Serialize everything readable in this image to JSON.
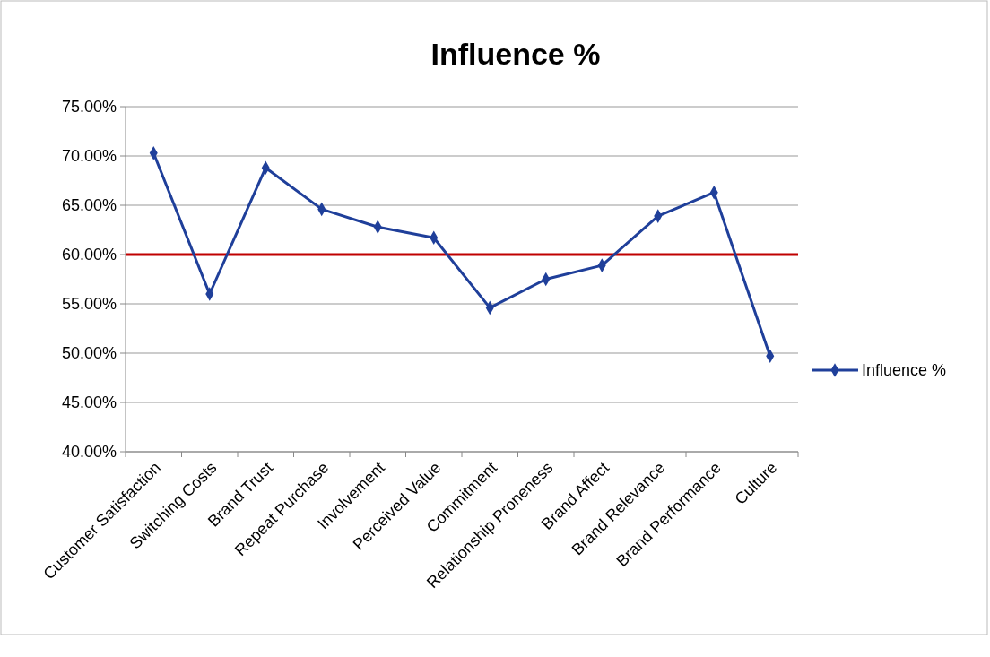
{
  "chart_data": {
    "type": "line",
    "title": "Influence %",
    "categories": [
      "Customer Satisfaction",
      "Switching Costs",
      "Brand Trust",
      "Repeat Purchase",
      "Involvement",
      "Perceived Value",
      "Commitment",
      "Relationship Proneness",
      "Brand Affect",
      "Brand Relevance",
      "Brand Performance",
      "Culture"
    ],
    "series": [
      {
        "name": "Influence %",
        "color": "#1f3f9a",
        "values": [
          70.3,
          56.0,
          68.8,
          64.6,
          62.8,
          61.7,
          54.6,
          57.5,
          58.9,
          63.9,
          66.3,
          49.7
        ]
      }
    ],
    "ylim": [
      40,
      75
    ],
    "yticks": [
      {
        "value": 40,
        "label": "40.00%"
      },
      {
        "value": 45,
        "label": "45.00%"
      },
      {
        "value": 50,
        "label": "50.00%"
      },
      {
        "value": 55,
        "label": "55.00%"
      },
      {
        "value": 60,
        "label": "60.00%"
      },
      {
        "value": 65,
        "label": "65.00%"
      },
      {
        "value": 70,
        "label": "70.00%"
      },
      {
        "value": 75,
        "label": "75.00%"
      }
    ],
    "ref_lines": [
      {
        "axis": "y",
        "value": 60,
        "color": "#c00000"
      }
    ],
    "grid": "y",
    "legend": "right",
    "marker": "diamond",
    "line_style": "solid"
  }
}
